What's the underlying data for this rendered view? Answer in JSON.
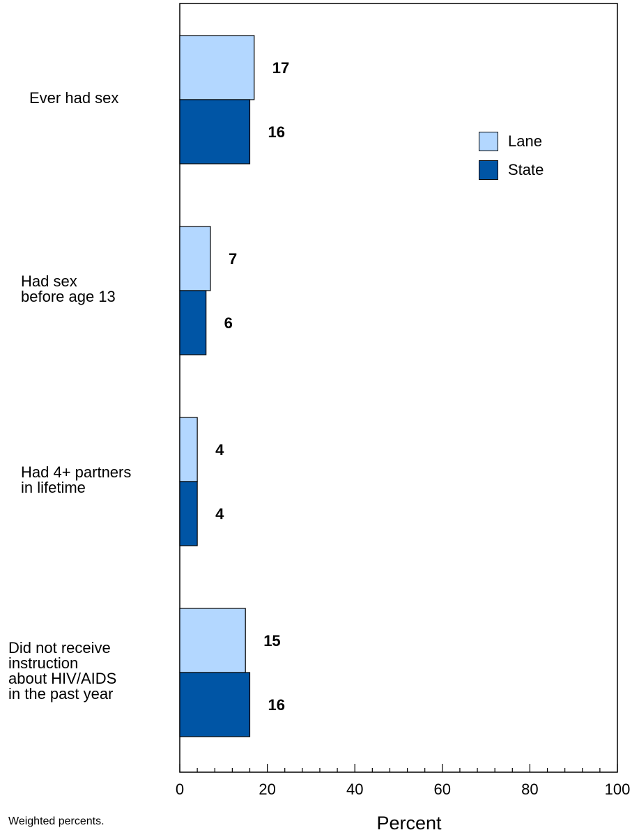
{
  "chart_data": {
    "type": "bar",
    "orientation": "horizontal",
    "categories": [
      "Ever had sex",
      "Had sex\nbefore age 13",
      "Had 4+ partners\nin lifetime",
      "Did not receive\ninstruction\nabout HIV/AIDS\nin the past year"
    ],
    "series": [
      {
        "name": "Lane",
        "values": [
          17,
          7,
          4,
          15
        ],
        "color": "#b3d7ff"
      },
      {
        "name": "State",
        "values": [
          16,
          6,
          4,
          16
        ],
        "color": "#0055a5"
      }
    ],
    "xlabel": "Percent",
    "xlim": [
      0,
      100
    ],
    "xticks": [
      0,
      20,
      40,
      60,
      80,
      100
    ],
    "legend_position": "top-right",
    "footnote": "Weighted percents."
  }
}
